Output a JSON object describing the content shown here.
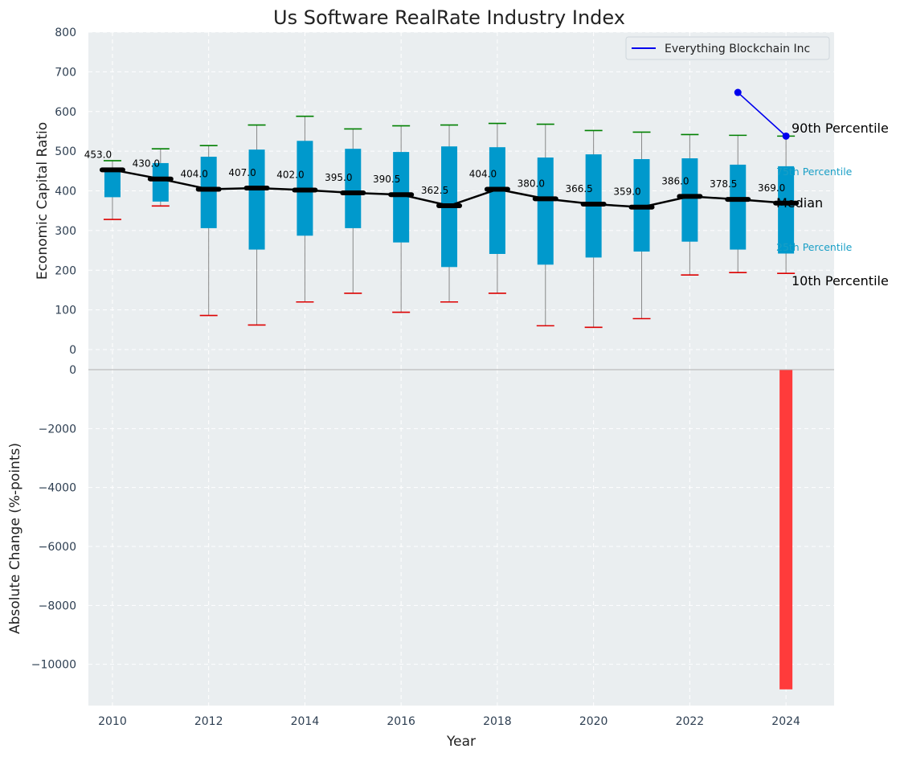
{
  "chart_data": [
    {
      "type": "box",
      "title": "Us Software RealRate Industry Index",
      "ylabel": "Economic Capital Ratio",
      "ylim": [
        0,
        800
      ],
      "yticks": [
        0,
        100,
        200,
        300,
        400,
        500,
        600,
        700,
        800
      ],
      "x": [
        2010,
        2011,
        2012,
        2013,
        2014,
        2015,
        2016,
        2017,
        2018,
        2019,
        2020,
        2021,
        2022,
        2023,
        2024
      ],
      "p10": [
        328,
        362,
        86,
        62,
        120,
        142,
        94,
        120,
        142,
        60,
        56,
        78,
        188,
        194,
        192
      ],
      "p25": [
        384,
        373,
        306,
        252,
        287,
        306,
        270,
        208,
        241,
        214,
        232,
        247,
        272,
        252,
        242
      ],
      "median": [
        453.0,
        430.0,
        404.0,
        407.0,
        402.0,
        395.0,
        390.5,
        362.5,
        404.0,
        380.0,
        366.5,
        359.0,
        386.0,
        378.5,
        369.0
      ],
      "median_labels": [
        "453.0",
        "430.0",
        "404.0",
        "407.0",
        "402.0",
        "395.0",
        "390.5",
        "362.5",
        "404.0",
        "380.0",
        "366.5",
        "359.0",
        "386.0",
        "378.5",
        "369.0"
      ],
      "p75": [
        456,
        470,
        486,
        504,
        526,
        506,
        498,
        512,
        510,
        484,
        492,
        480,
        482,
        466,
        462
      ],
      "p90": [
        476,
        506,
        514,
        566,
        588,
        556,
        564,
        566,
        570,
        568,
        552,
        548,
        542,
        540,
        538
      ],
      "company_series": {
        "name": "Everything Blockchain Inc",
        "x": [
          2023,
          2024
        ],
        "values": [
          648,
          538
        ]
      },
      "annotations": {
        "p90": "90th Percentile",
        "p75": "75th Percentile",
        "median": "Median",
        "p25": "25th Percentile",
        "p10": "10th Percentile"
      },
      "legend": {
        "position": "top-right",
        "entries": [
          "Everything Blockchain Inc"
        ]
      },
      "grid": true
    },
    {
      "type": "bar",
      "ylabel": "Absolute Change (%-points)",
      "xlabel": "Year",
      "ylim": [
        -11400,
        0
      ],
      "yticks": [
        0,
        -2000,
        -4000,
        -6000,
        -8000,
        -10000
      ],
      "ytick_labels": [
        "0",
        "−2000",
        "−4000",
        "−6000",
        "−8000",
        "−10000"
      ],
      "xticks": [
        2010,
        2012,
        2014,
        2016,
        2018,
        2020,
        2022,
        2024
      ],
      "xlim": [
        2009.5,
        2025
      ],
      "x": [
        2024
      ],
      "values": [
        -10850
      ],
      "grid": true
    }
  ],
  "colors": {
    "plot_bg": "#eaeef0",
    "box": "#0099cc",
    "median_line": "#000000",
    "whisker_high": "#008000",
    "whisker_low": "#dd0000",
    "whisker_line": "#888888",
    "company_line": "#0000ee",
    "bar_negative": "#ff3b3b",
    "annot_quartile": "#1a9fc6"
  }
}
